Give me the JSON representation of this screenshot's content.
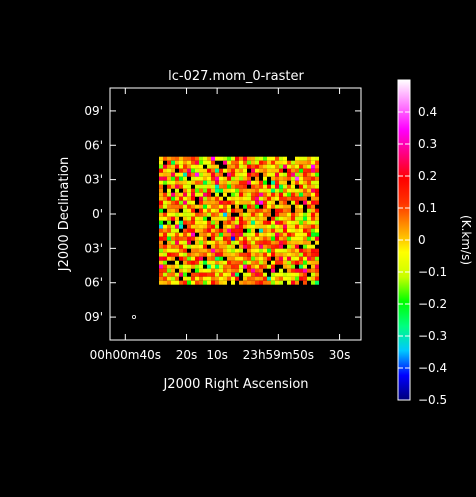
{
  "chart_data": {
    "type": "heatmap",
    "title": "lc-027.mom_0-raster",
    "xlabel": "J2000 Right Ascension",
    "ylabel": "J2000 Declination",
    "x_tick_labels": [
      {
        "text": "00h00m40s",
        "ra_s": 40
      },
      {
        "text": "20s",
        "ra_s": 20
      },
      {
        "text": "10s",
        "ra_s": 10
      },
      {
        "text": "23h59m50s",
        "ra_s": -10
      },
      {
        "text": "30s",
        "ra_s": -30
      }
    ],
    "y_tick_labels": [
      {
        "text": "09'",
        "dec_arcmin": 9
      },
      {
        "text": "06'",
        "dec_arcmin": 6
      },
      {
        "text": "03'",
        "dec_arcmin": 3
      },
      {
        "text": "0'",
        "dec_arcmin": 0
      },
      {
        "text": "03'",
        "dec_arcmin": -3
      },
      {
        "text": "06'",
        "dec_arcmin": -6
      },
      {
        "text": "09'",
        "dec_arcmin": -9
      }
    ],
    "colorbar": {
      "label": "(K.km/s)",
      "range": [
        -0.5,
        0.5
      ],
      "ticks": [
        {
          "text": "0.4",
          "value": 0.4
        },
        {
          "text": "0.3",
          "value": 0.3
        },
        {
          "text": "0.2",
          "value": 0.2
        },
        {
          "text": "0.1",
          "value": 0.1
        },
        {
          "text": "0",
          "value": 0.0
        },
        {
          "text": "−0.1",
          "value": -0.1
        },
        {
          "text": "−0.2",
          "value": -0.2
        },
        {
          "text": "−0.3",
          "value": -0.3
        },
        {
          "text": "−0.4",
          "value": -0.4
        },
        {
          "text": "−0.5",
          "value": -0.5
        }
      ],
      "colormap": [
        "#00007a",
        "#0000ff",
        "#00c8ff",
        "#00ff80",
        "#00ff00",
        "#c8ff00",
        "#ffff00",
        "#ff9900",
        "#ff3300",
        "#ff0000",
        "#ff0080",
        "#ff00ff",
        "#ff80ff",
        "#ffffff"
      ]
    },
    "x_range_ra_s": [
      45,
      -37
    ],
    "y_range_dec_arcmin": [
      -11,
      11
    ],
    "map_extent": {
      "ra_s": [
        29,
        -22
      ],
      "dec_arcmin": [
        -6.1,
        5.0
      ]
    },
    "noise_seed": 27,
    "beam_marker": true
  }
}
